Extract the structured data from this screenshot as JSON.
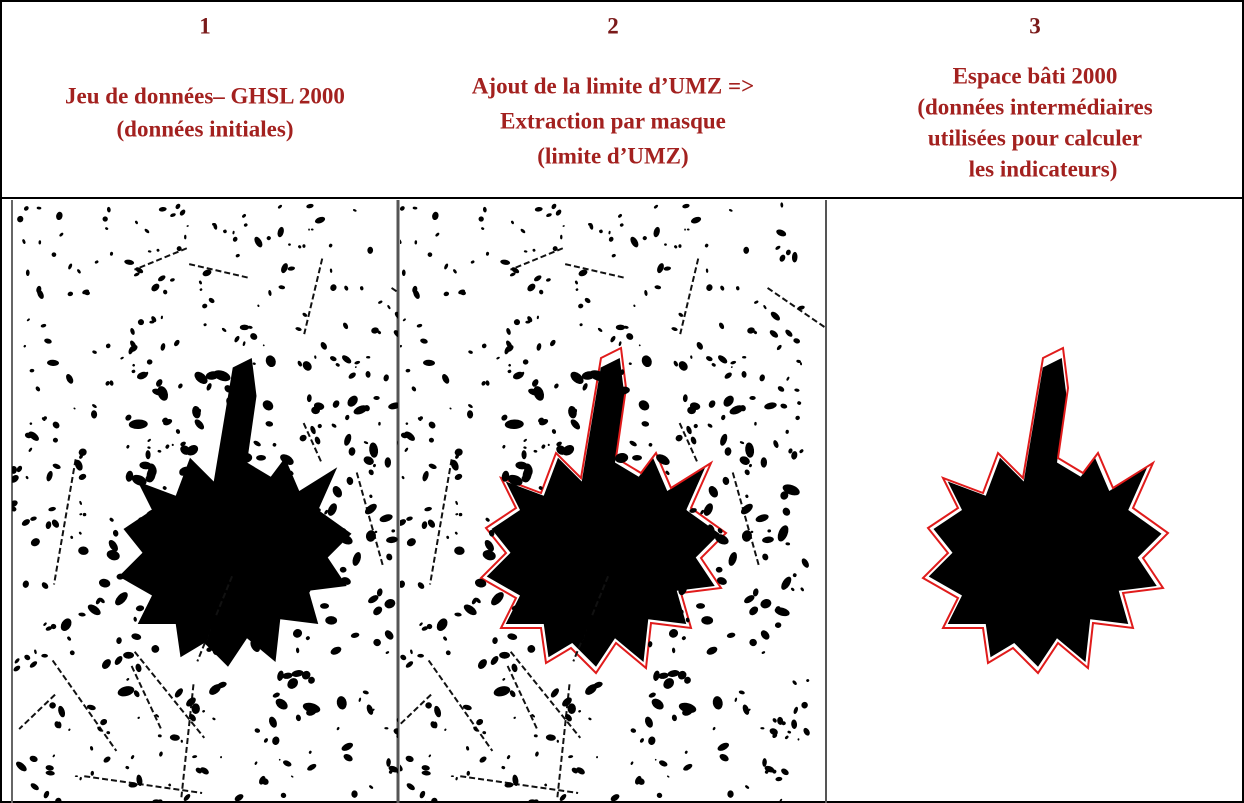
{
  "columns": [
    {
      "number": "1",
      "title_lines": [
        "Jeu de données– GHSL 2000",
        "(données initiales)"
      ]
    },
    {
      "number": "2",
      "title_lines": [
        "Ajout de la limite d’UMZ =>",
        "Extraction par masque",
        "(limite d’UMZ)"
      ]
    },
    {
      "number": "3",
      "title_lines": [
        "Espace bâti 2000",
        "(données intermédiaires",
        "utilisées pour calculer",
        "les indicateurs)"
      ]
    }
  ]
}
